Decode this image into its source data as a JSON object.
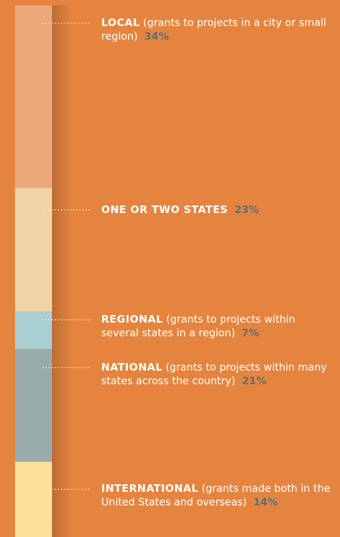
{
  "chart_data": {
    "type": "bar",
    "stacked": true,
    "orientation": "vertical",
    "series": [
      {
        "name": "LOCAL",
        "description": "(grants to projects in a city or small region)",
        "color": "#eba87b",
        "values": [
          34
        ],
        "value_labels": [
          "34%"
        ]
      },
      {
        "name": "ONE OR TWO STATES",
        "color": "#f1d4a5",
        "values": [
          23
        ],
        "value_labels": [
          "23%"
        ]
      },
      {
        "name": "REGIONAL",
        "description": "(grants to projects within several states in a region)",
        "color": "#a9cfd0",
        "values": [
          7
        ],
        "value_labels": [
          "7%"
        ]
      },
      {
        "name": "NATIONAL",
        "description": "(grants to projects within many states across the country)",
        "color": "#98abaa",
        "values": [
          21
        ],
        "value_labels": [
          "21%"
        ]
      },
      {
        "name": "INTERNATIONAL",
        "description": "(grants made both in the United States and overseas)",
        "color": "#fde09c",
        "values": [
          14
        ],
        "value_labels": [
          "14%"
        ]
      }
    ]
  }
}
